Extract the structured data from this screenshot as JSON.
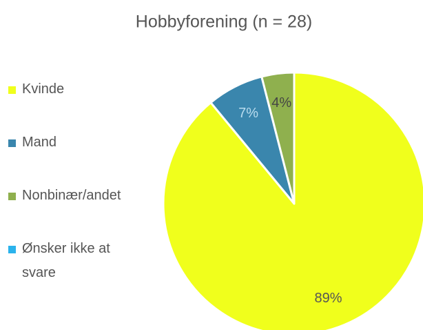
{
  "chart_data": {
    "type": "pie",
    "title": "Hobbyforening (n = 28)",
    "categories": [
      "Kvinde",
      "Mand",
      "Nonbinær/andet",
      "Ønsker ikke at svare"
    ],
    "values": [
      89,
      7,
      4,
      0
    ],
    "value_labels": [
      "89%",
      "7%",
      "4%",
      null
    ],
    "colors": [
      "#f0ff1c",
      "#3a86ad",
      "#8fb04e",
      "#2bb3ec"
    ],
    "label_colors": [
      "#555555",
      "#b9dcee",
      "#444444",
      "#555555"
    ],
    "legend": "left"
  }
}
